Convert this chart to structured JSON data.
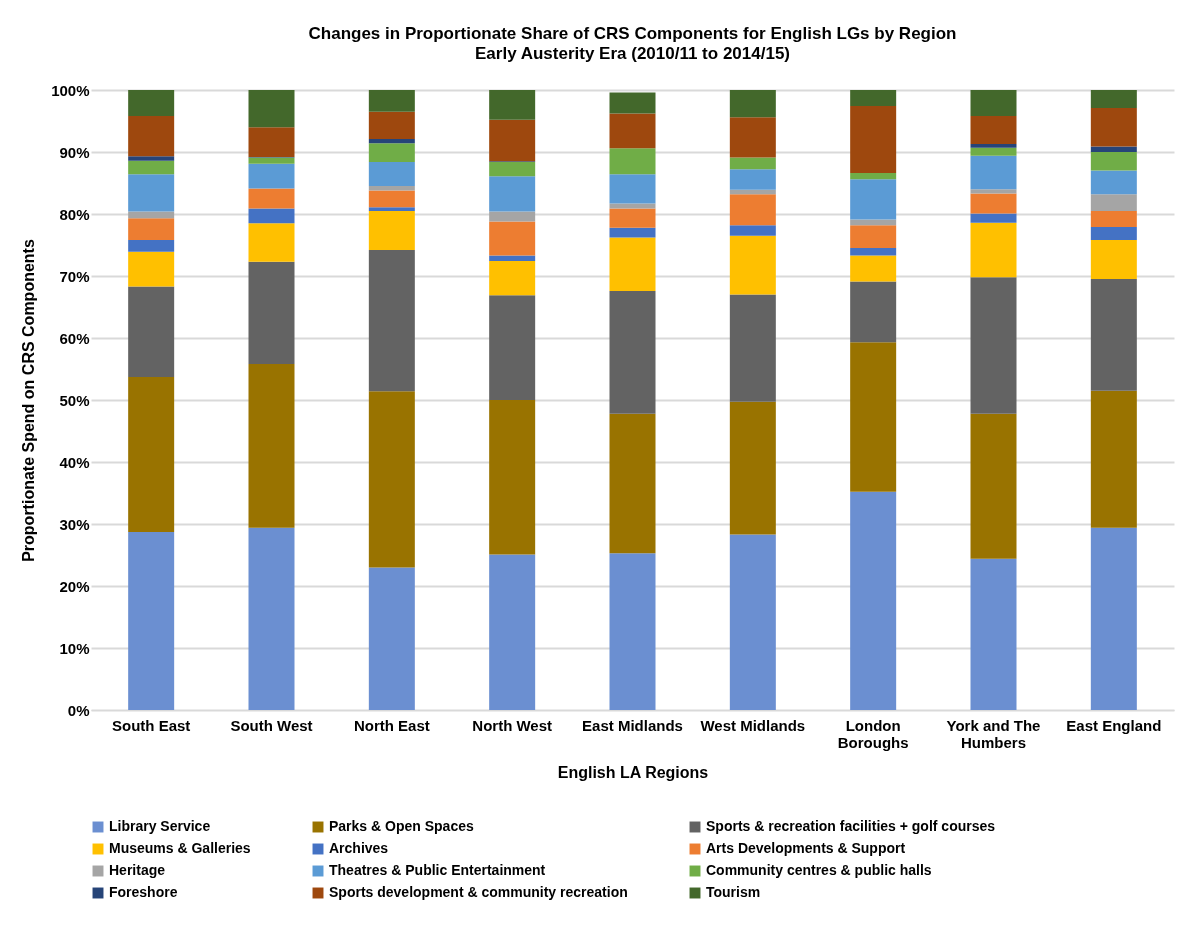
{
  "chart_data": {
    "type": "bar",
    "stacked": true,
    "title": "Changes in Proportionate Share of CRS Components for English LGs by Region",
    "subtitle": "Early Austerity Era (2010/11 to 2014/15)",
    "xlabel": "English LA Regions",
    "ylabel": "Proportionate  Spend on CRS Components",
    "categories": [
      "South East",
      "South West",
      "North East",
      "North West",
      "East Midlands",
      "West Midlands",
      "London Boroughs",
      "York and The Humbers",
      "East England"
    ],
    "series": [
      {
        "name": "Library Service",
        "color": "#6b8fd1",
        "values": [
          28.7,
          29.4,
          23.0,
          25.1,
          25.3,
          28.3,
          35.2,
          24.4,
          29.4
        ]
      },
      {
        "name": "Parks & Open Spaces",
        "color": "#997300",
        "values": [
          25.0,
          26.4,
          28.4,
          24.9,
          22.5,
          21.4,
          24.1,
          23.4,
          22.1
        ]
      },
      {
        "name": "Sports & recreation facilities + golf courses",
        "color": "#636363",
        "values": [
          14.6,
          16.5,
          22.8,
          16.9,
          19.8,
          17.3,
          9.8,
          22.0,
          18.0
        ]
      },
      {
        "name": "Museums & Galleries",
        "color": "#ffc000",
        "values": [
          5.6,
          6.2,
          6.3,
          5.5,
          8.6,
          9.5,
          4.2,
          8.8,
          6.3
        ]
      },
      {
        "name": "Archives",
        "color": "#4472c4",
        "values": [
          1.9,
          2.4,
          0.6,
          0.9,
          1.6,
          1.7,
          1.2,
          1.5,
          2.1
        ]
      },
      {
        "name": "Arts Developments & Support",
        "color": "#ed7d31",
        "values": [
          3.5,
          3.2,
          2.7,
          5.5,
          3.1,
          5.0,
          3.7,
          3.2,
          2.6
        ]
      },
      {
        "name": "Heritage",
        "color": "#a5a5a5",
        "values": [
          1.1,
          0.0,
          0.7,
          1.6,
          0.8,
          0.7,
          0.9,
          0.7,
          2.7
        ]
      },
      {
        "name": "Theatres & Public Entertainment",
        "color": "#5b9bd5",
        "values": [
          6.0,
          4.0,
          3.9,
          5.7,
          4.7,
          3.3,
          6.5,
          5.4,
          3.8
        ]
      },
      {
        "name": "Community centres & public halls",
        "color": "#70ad47",
        "values": [
          2.2,
          1.0,
          3.0,
          2.3,
          4.2,
          1.9,
          1.0,
          1.3,
          3.0
        ]
      },
      {
        "name": "Foreshore",
        "color": "#264478",
        "values": [
          0.7,
          0.1,
          0.7,
          0.1,
          0.0,
          0.0,
          0.0,
          0.6,
          0.9
        ]
      },
      {
        "name": "Sports development & community recreation",
        "color": "#9e480e",
        "values": [
          6.5,
          4.8,
          4.4,
          6.7,
          5.6,
          6.5,
          10.8,
          4.5,
          6.2
        ]
      },
      {
        "name": "Tourism",
        "color": "#43682b",
        "values": [
          4.2,
          6.0,
          3.5,
          4.8,
          3.4,
          4.4,
          2.6,
          4.2,
          2.9
        ]
      }
    ],
    "ylim": [
      0,
      100
    ],
    "yticks": [
      {
        "value": 0,
        "label": "0%"
      },
      {
        "value": 10,
        "label": "10%"
      },
      {
        "value": 20,
        "label": "20%"
      },
      {
        "value": 30,
        "label": "30%"
      },
      {
        "value": 40,
        "label": "40%"
      },
      {
        "value": 50,
        "label": "50%"
      },
      {
        "value": 60,
        "label": "60%"
      },
      {
        "value": 70,
        "label": "70%"
      },
      {
        "value": 80,
        "label": "80%"
      },
      {
        "value": 90,
        "label": "90%"
      },
      {
        "value": 100,
        "label": "100%"
      }
    ],
    "grid": "y",
    "legend": "bottom"
  }
}
